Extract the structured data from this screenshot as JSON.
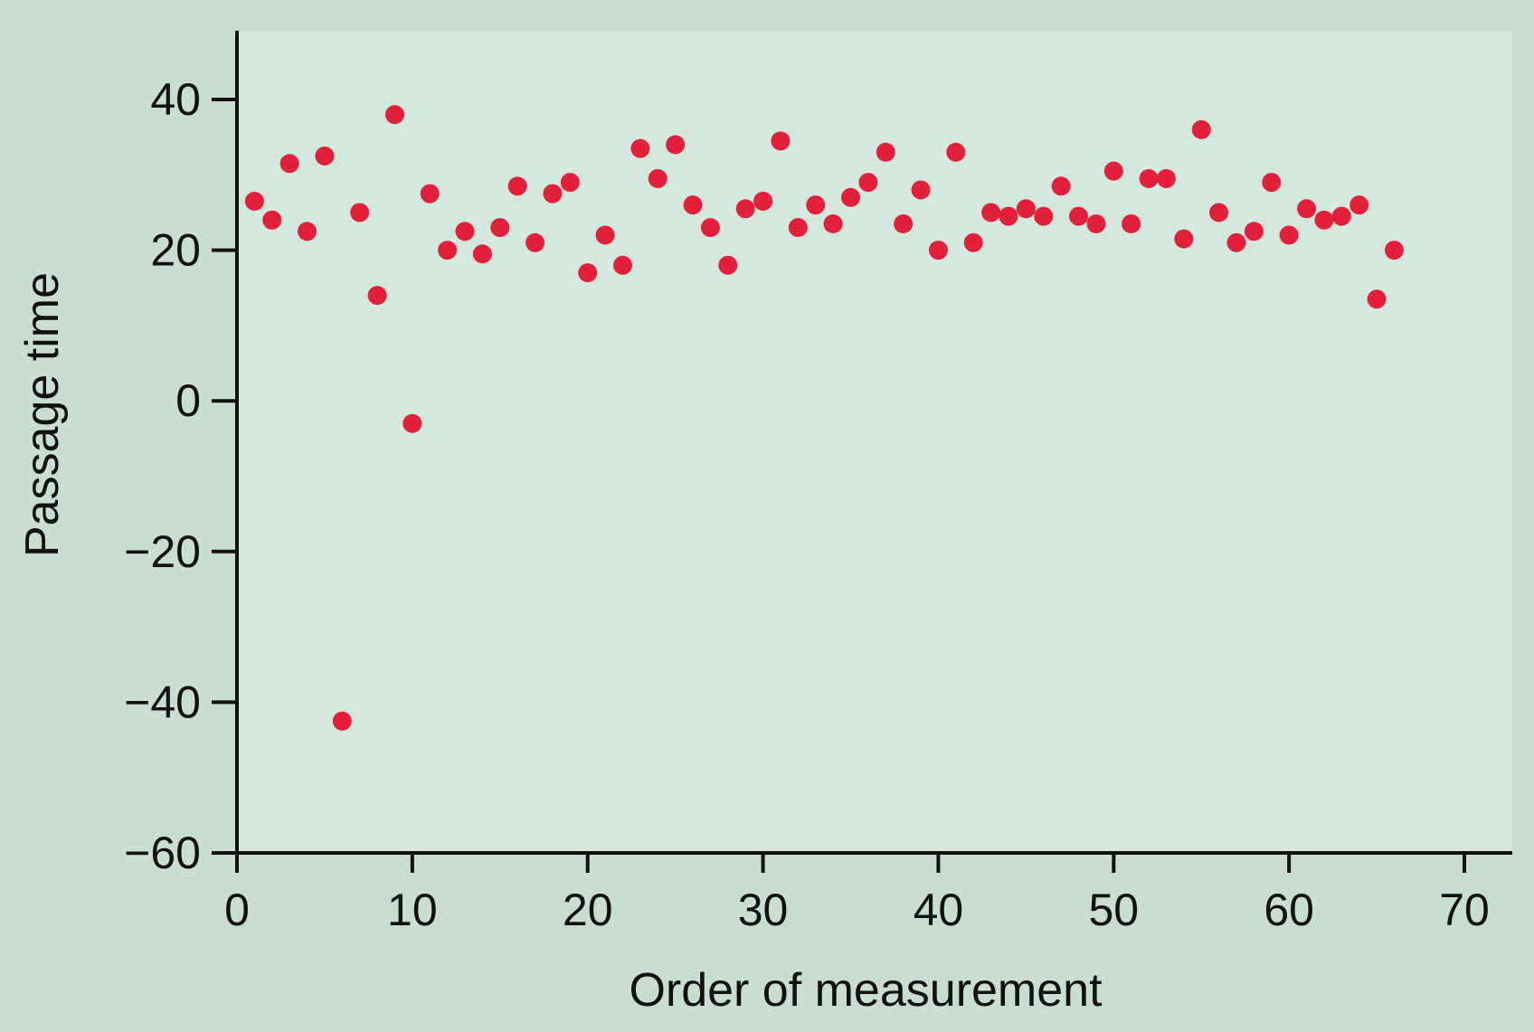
{
  "chart_data": {
    "type": "scatter",
    "title": "",
    "xlabel": "Order of measurement",
    "ylabel": "Passage time",
    "xlim": [
      0,
      70
    ],
    "ylim": [
      -60,
      40
    ],
    "x_ticks": [
      0,
      10,
      20,
      30,
      40,
      50,
      60,
      70
    ],
    "y_ticks": [
      40,
      20,
      0,
      -20,
      -40,
      -60
    ],
    "x_tick_labels": [
      "0",
      "10",
      "20",
      "30",
      "40",
      "50",
      "60",
      "70"
    ],
    "y_tick_labels": [
      "40",
      "20",
      "0",
      "−20",
      "−40",
      "−60"
    ],
    "grid": false,
    "point_color": "#e3203c",
    "plot_background": "#d4e8de",
    "figure_background": "#c9ddd2",
    "series": [
      {
        "x": [
          1,
          2,
          3,
          4,
          5,
          6,
          7,
          8,
          9,
          10,
          11,
          12,
          13,
          14,
          15,
          16,
          17,
          18,
          19,
          20,
          21,
          22,
          23,
          24,
          25,
          26,
          27,
          28,
          29,
          30,
          31,
          32,
          33,
          34,
          35,
          36,
          37,
          38,
          39,
          40,
          41,
          42,
          43,
          44,
          45,
          46,
          47,
          48,
          49,
          50,
          51,
          52,
          53,
          54,
          55,
          56,
          57,
          58,
          59,
          60,
          61,
          62,
          63,
          64,
          65,
          66
        ],
        "y": [
          26.5,
          24,
          31.5,
          22.5,
          32.5,
          -42.5,
          25,
          14,
          38,
          -3,
          27.5,
          20,
          22.5,
          19.5,
          23,
          28.5,
          21,
          27.5,
          29,
          17,
          22,
          18,
          33.5,
          29.5,
          34,
          26,
          23,
          18,
          25.5,
          26.5,
          34.5,
          23,
          26,
          23.5,
          27,
          29,
          33,
          23.5,
          28,
          20,
          33,
          21,
          25,
          24.5,
          25.5,
          24.5,
          28.5,
          24.5,
          23.5,
          30.5,
          23.5,
          29.5,
          29.5,
          21.5,
          36,
          25,
          21,
          22.5,
          29,
          22,
          25.5,
          24,
          24.5,
          26,
          13.5,
          20
        ]
      }
    ]
  }
}
